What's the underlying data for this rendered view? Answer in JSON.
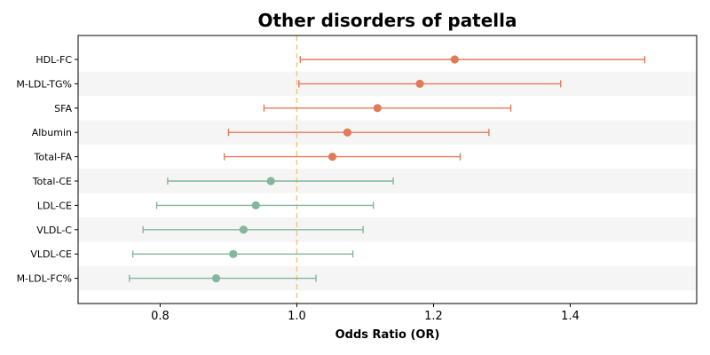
{
  "chart_data": {
    "type": "forest",
    "title": "Other disorders of patella",
    "xlabel": "Odds Ratio (OR)",
    "ylabel": "",
    "xlim": [
      0.68,
      1.585
    ],
    "xticks": [
      "0.8",
      "1.0",
      "1.2",
      "1.4"
    ],
    "reference_line": 1.0,
    "grid": false,
    "colors": {
      "positive": "#e07b5a",
      "negative": "#82b79c",
      "reference": "#f4c684",
      "band": "#f5f5f5"
    },
    "rows": [
      {
        "label": "HDL-FC",
        "or": 1.231,
        "lower": 1.005,
        "upper": 1.509,
        "group": "positive"
      },
      {
        "label": "M-LDL-TG%",
        "or": 1.18,
        "lower": 1.003,
        "upper": 1.386,
        "group": "positive"
      },
      {
        "label": "SFA",
        "or": 1.118,
        "lower": 0.952,
        "upper": 1.313,
        "group": "positive"
      },
      {
        "label": "Albumin",
        "or": 1.074,
        "lower": 0.9,
        "upper": 1.281,
        "group": "positive"
      },
      {
        "label": "Total-FA",
        "or": 1.052,
        "lower": 0.894,
        "upper": 1.239,
        "group": "positive"
      },
      {
        "label": "Total-CE",
        "or": 0.962,
        "lower": 0.811,
        "upper": 1.141,
        "group": "negative"
      },
      {
        "label": "LDL-CE",
        "or": 0.94,
        "lower": 0.795,
        "upper": 1.112,
        "group": "negative"
      },
      {
        "label": "VLDL-C",
        "or": 0.922,
        "lower": 0.775,
        "upper": 1.097,
        "group": "negative"
      },
      {
        "label": "VLDL-CE",
        "or": 0.907,
        "lower": 0.76,
        "upper": 1.082,
        "group": "negative"
      },
      {
        "label": "M-LDL-FC%",
        "or": 0.882,
        "lower": 0.755,
        "upper": 1.028,
        "group": "negative"
      }
    ]
  }
}
